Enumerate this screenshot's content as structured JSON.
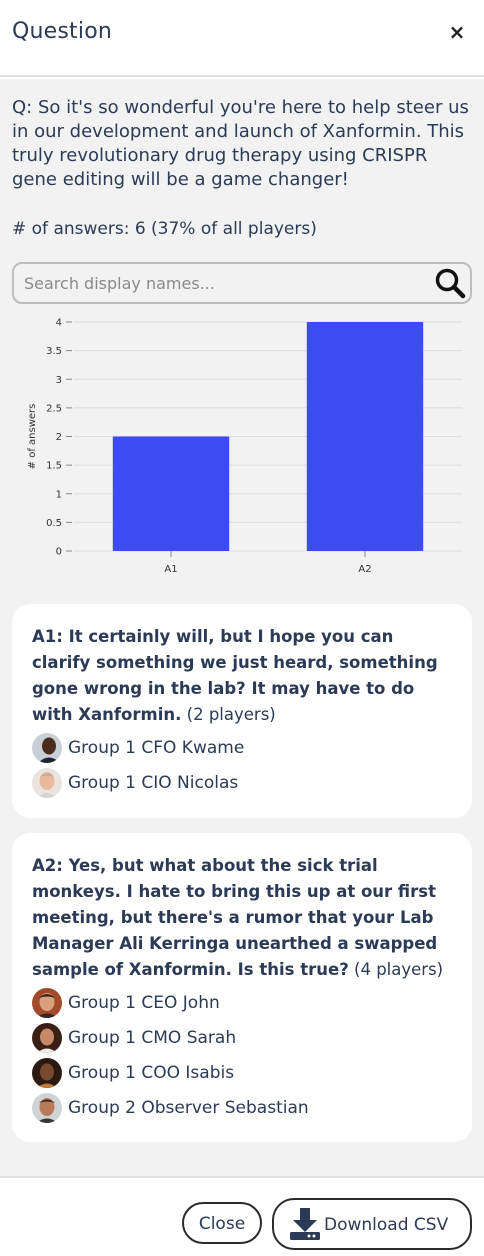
{
  "header": {
    "title": "Question",
    "close_label": "×"
  },
  "question": {
    "text": "Q: So it's so wonderful you're here to help steer us in our development and launch of Xanformin. This truly revolutionary drug therapy using CRISPR gene editing will be a game changer!",
    "answer_count": "# of answers: 6 (37% of all players)"
  },
  "search": {
    "placeholder": "Search display names..."
  },
  "chart_data": {
    "type": "bar",
    "categories": [
      "A1",
      "A2"
    ],
    "values": [
      2,
      4
    ],
    "ylabel": "# of answers",
    "xlabel": "",
    "ylim": [
      0,
      4
    ],
    "yticks": [
      "0",
      "0.5",
      "1",
      "1.5",
      "2",
      "2.5",
      "3",
      "3.5",
      "4"
    ],
    "bar_color": "#3d4bf2",
    "grid": true
  },
  "answers": [
    {
      "text": "A1: It certainly will, but I hope you can clarify something we just heard, something gone wrong in the lab? It may have to do with Xanformin.",
      "players_count": "(2 players)",
      "players": [
        "Group 1 CFO Kwame",
        "Group 1 CIO Nicolas"
      ]
    },
    {
      "text": "A2: Yes, but what about the sick trial monkeys. I hate to bring this up at our first meeting, but there's a rumor that your Lab Manager Ali Kerringa unearthed a swapped sample of Xanformin. Is this true?",
      "players_count": "(4 players)",
      "players": [
        "Group 1 CEO John",
        "Group 1 CMO Sarah",
        "Group 1 COO Isabis",
        "Group 2 Observer Sebastian"
      ]
    }
  ],
  "footer": {
    "close_label": "Close",
    "csv_label": "Download CSV"
  },
  "colors": {
    "accent": "#3d4bf2",
    "text": "#2b3a55",
    "panel_bg": "#f2f2f2"
  }
}
